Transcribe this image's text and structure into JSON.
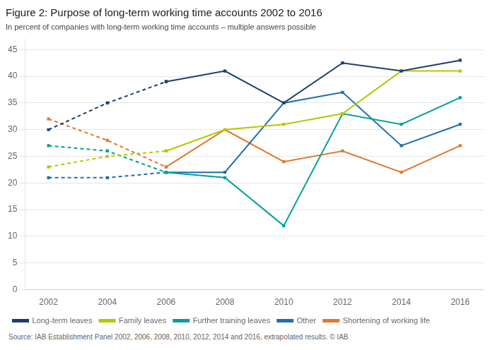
{
  "chart_data": {
    "type": "line",
    "title": "Figure 2: Purpose of long-term working time accounts 2002 to 2016",
    "subtitle": "In percent of companies with long-term working time accounts – multiple answers possible",
    "source": "Source: IAB Establishment Panel 2002, 2006, 2008, 2010, 2012, 2014 and 2016, extrapolated results. © IAB",
    "x": [
      2002,
      2004,
      2006,
      2008,
      2010,
      2012,
      2014,
      2016
    ],
    "series": [
      {
        "name": "Long-term leaves",
        "color": "#1c3f6e",
        "line_style": "dashed",
        "marker": "square",
        "values": [
          30,
          35,
          39,
          null,
          null,
          null,
          null,
          null
        ]
      },
      {
        "name": "Long-term leaves",
        "color": "#1c3f6e",
        "line_style": "solid",
        "marker": "square",
        "values": [
          null,
          null,
          39,
          41,
          35,
          42.5,
          41,
          43
        ]
      },
      {
        "name": "Family leaves",
        "color": "#b5c800",
        "line_style": "dashed",
        "marker": "square",
        "values": [
          23,
          25,
          26,
          null,
          null,
          null,
          null,
          null
        ]
      },
      {
        "name": "Family leaves",
        "color": "#b5c800",
        "line_style": "solid",
        "marker": "square",
        "values": [
          null,
          null,
          26,
          30,
          31,
          33,
          41,
          41
        ]
      },
      {
        "name": "Further training leaves",
        "color": "#00a09a",
        "line_style": "dashed",
        "marker": "square",
        "values": [
          27,
          26,
          22,
          null,
          null,
          null,
          null,
          null
        ]
      },
      {
        "name": "Further training leaves",
        "color": "#00a09a",
        "line_style": "solid",
        "marker": "square",
        "values": [
          null,
          null,
          22,
          21,
          12,
          33,
          31,
          36
        ]
      },
      {
        "name": "Other",
        "color": "#1e6fad",
        "line_style": "dashed",
        "marker": "square",
        "values": [
          21,
          21,
          22,
          null,
          null,
          null,
          null,
          null
        ]
      },
      {
        "name": "Other",
        "color": "#1e6fad",
        "line_style": "solid",
        "marker": "square",
        "values": [
          null,
          null,
          22,
          22,
          35,
          37,
          27,
          31
        ]
      },
      {
        "name": "Shortening of working life",
        "color": "#e07830",
        "line_style": "dashed",
        "marker": "square",
        "values": [
          32,
          28,
          23,
          null,
          null,
          null,
          null,
          null
        ]
      },
      {
        "name": "Shortening of working life",
        "color": "#e07830",
        "line_style": "solid",
        "marker": "square",
        "values": [
          null,
          null,
          23,
          30,
          24,
          26,
          22,
          27
        ]
      }
    ],
    "xlim": [
      2001.2,
      2016.8
    ],
    "xticks": [
      2002,
      2004,
      2006,
      2008,
      2010,
      2012,
      2014,
      2016
    ],
    "ylim": [
      0,
      47
    ],
    "yticks": [
      0,
      5,
      10,
      15,
      20,
      25,
      30,
      35,
      40,
      45
    ],
    "grid": "y",
    "legend": "bottom"
  }
}
